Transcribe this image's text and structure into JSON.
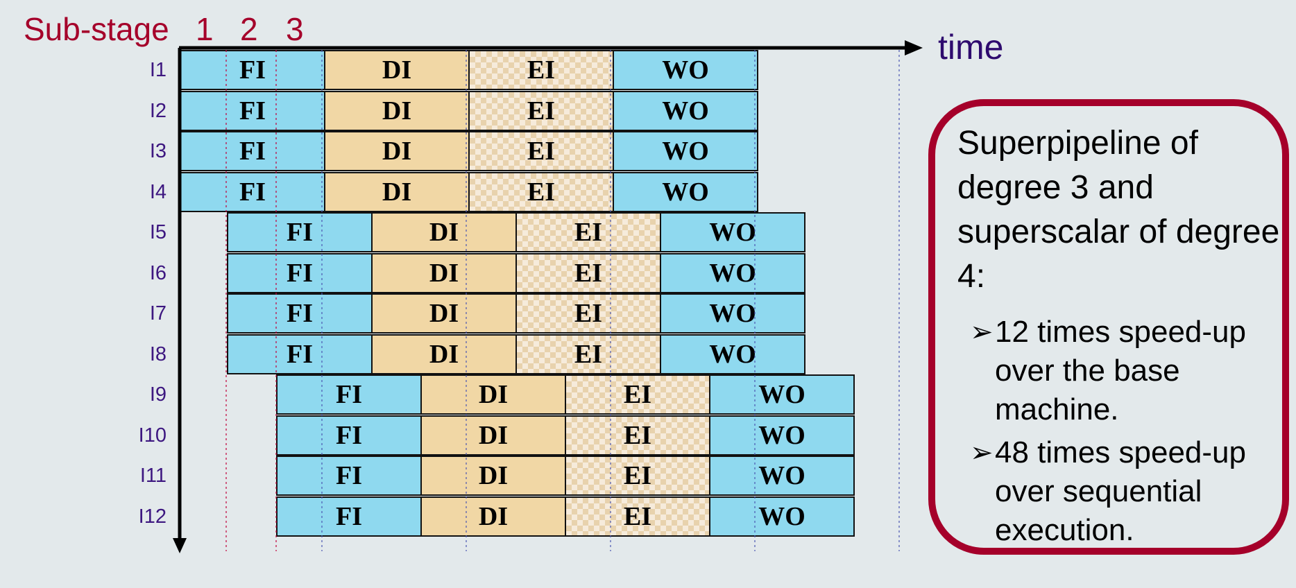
{
  "header": {
    "sub_stage_label": "Sub-stage",
    "sub_stage_numbers": [
      "1",
      "2",
      "3"
    ],
    "time_label": "time"
  },
  "stages": [
    "FI",
    "DI",
    "EI",
    "WO"
  ],
  "instructions": [
    "I1",
    "I2",
    "I3",
    "I4",
    "I5",
    "I6",
    "I7",
    "I8",
    "I9",
    "I10",
    "I11",
    "I12"
  ],
  "callout": {
    "title": "Superpipeline of degree 3 and superscalar of degree 4:",
    "bullets": [
      "12 times speed-up over the base machine.",
      " 48 times speed-up over sequential execution."
    ],
    "bullet_marker": "➢"
  },
  "colors": {
    "accent": "#a5002a",
    "label": "#3d1780",
    "fetch_write": "#8fd9ef",
    "decode": "#f1d7a5",
    "execute": "#f6ebdb",
    "background": "#e3e9eb"
  }
}
